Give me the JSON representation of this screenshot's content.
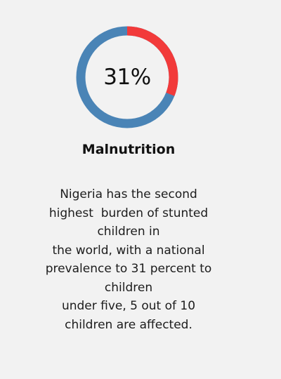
{
  "stat": {
    "percent_label": "31%",
    "percent_value": 31,
    "ring_colors": {
      "main": "#4a84b6",
      "highlight": "#f23a3a"
    }
  },
  "heading": {
    "title": "Malnutrition"
  },
  "description": {
    "lines": [
      "Nigeria has the second",
      "highest  burden of stunted",
      "children in",
      "the world, with a national",
      "prevalence to 31 percent to",
      "children",
      "under five, 5 out of 10",
      "children are affected."
    ]
  }
}
